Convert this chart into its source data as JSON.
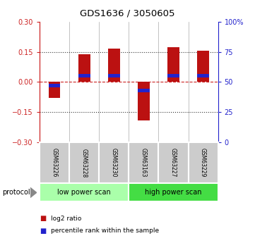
{
  "title": "GDS1636 / 3050605",
  "samples": [
    "GSM63226",
    "GSM63228",
    "GSM63230",
    "GSM63163",
    "GSM63227",
    "GSM63229"
  ],
  "log2_ratios": [
    -0.08,
    0.14,
    0.165,
    -0.19,
    0.175,
    0.155
  ],
  "percentile_ranks": [
    47,
    55,
    55,
    43,
    55,
    55
  ],
  "ylim_left": [
    -0.3,
    0.3
  ],
  "ylim_right": [
    0,
    100
  ],
  "yticks_left": [
    -0.3,
    -0.15,
    0,
    0.15,
    0.3
  ],
  "yticks_right": [
    0,
    25,
    50,
    75,
    100
  ],
  "bar_color": "#bb1111",
  "percentile_color": "#2222cc",
  "dashed_line_color": "#cc2222",
  "dotted_line_color": "#333333",
  "protocol_groups": [
    {
      "label": "low power scan",
      "color": "#aaffaa"
    },
    {
      "label": "high power scan",
      "color": "#44dd44"
    }
  ],
  "sample_box_color": "#cccccc",
  "legend_items": [
    {
      "color": "#bb1111",
      "label": "log2 ratio"
    },
    {
      "color": "#2222cc",
      "label": "percentile rank within the sample"
    }
  ],
  "bar_width": 0.4,
  "percentile_bar_height": 0.018
}
